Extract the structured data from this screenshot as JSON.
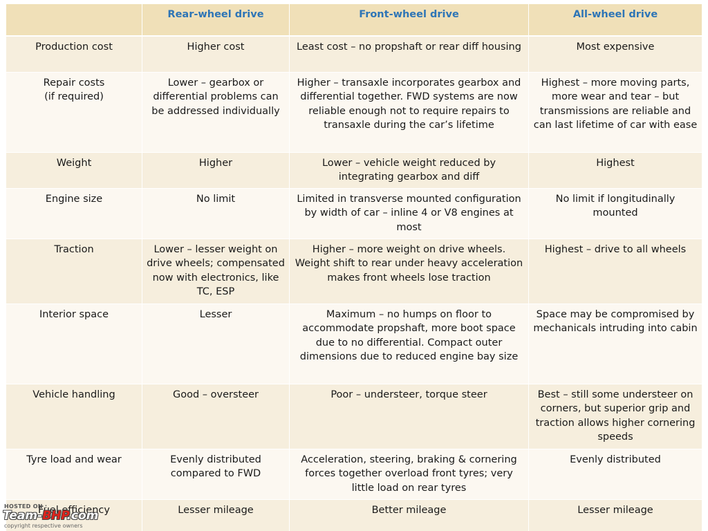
{
  "table": {
    "headers": [
      "",
      "Rear-wheel drive",
      "Front-wheel drive",
      "All-wheel drive"
    ],
    "rows": [
      [
        "Production cost",
        "Higher cost",
        "Least cost – no propshaft or rear diff housing",
        "Most expensive"
      ],
      [
        "Repair costs\n(if required)",
        "Lower – gearbox or differential problems can be addressed individually",
        "Higher – transaxle incorporates gearbox and differential together. FWD systems are now reliable enough not to require repairs to transaxle during the car’s lifetime",
        "Highest – more moving parts, more wear and tear – but transmissions are reliable and can last lifetime of car with ease"
      ],
      [
        "Weight",
        "Higher",
        "Lower – vehicle weight reduced by integrating gearbox and diff",
        "Highest"
      ],
      [
        "Engine size",
        "No limit",
        "Limited in transverse mounted configuration by width of car – inline 4 or V8 engines at most",
        "No limit if longitudinally mounted"
      ],
      [
        "Traction",
        "Lower – lesser weight on drive wheels; compensated now with electronics, like TC, ESP",
        "Higher – more weight on drive wheels. Weight shift  to rear under heavy acceleration makes front wheels lose traction",
        "Highest – drive to all wheels"
      ],
      [
        "Interior space",
        "Lesser",
        "Maximum – no humps on floor to accommodate propshaft, more boot space due to no differential. Compact  outer dimensions due to reduced engine bay size",
        "Space may be compromised by mechanicals intruding into cabin"
      ],
      [
        "Vehicle handling",
        "Good – oversteer",
        "Poor – understeer, torque steer",
        "Best – still some understeer on corners, but superior grip and traction allows higher cornering speeds"
      ],
      [
        "Tyre load and wear",
        "Evenly distributed compared to FWD",
        "Acceleration, steering, braking & cornering forces together overload front tyres; very little load on rear tyres",
        "Evenly distributed"
      ],
      [
        "Fuel efficiency",
        "Lesser mileage",
        "Better mileage",
        "Lesser mileage"
      ]
    ]
  },
  "watermark": {
    "hosted_on": "HOSTED ON :",
    "brand_part1": "Team-",
    "brand_part2": "BHP",
    "brand_part3": ".com",
    "copyright": "copyright respective owners"
  }
}
